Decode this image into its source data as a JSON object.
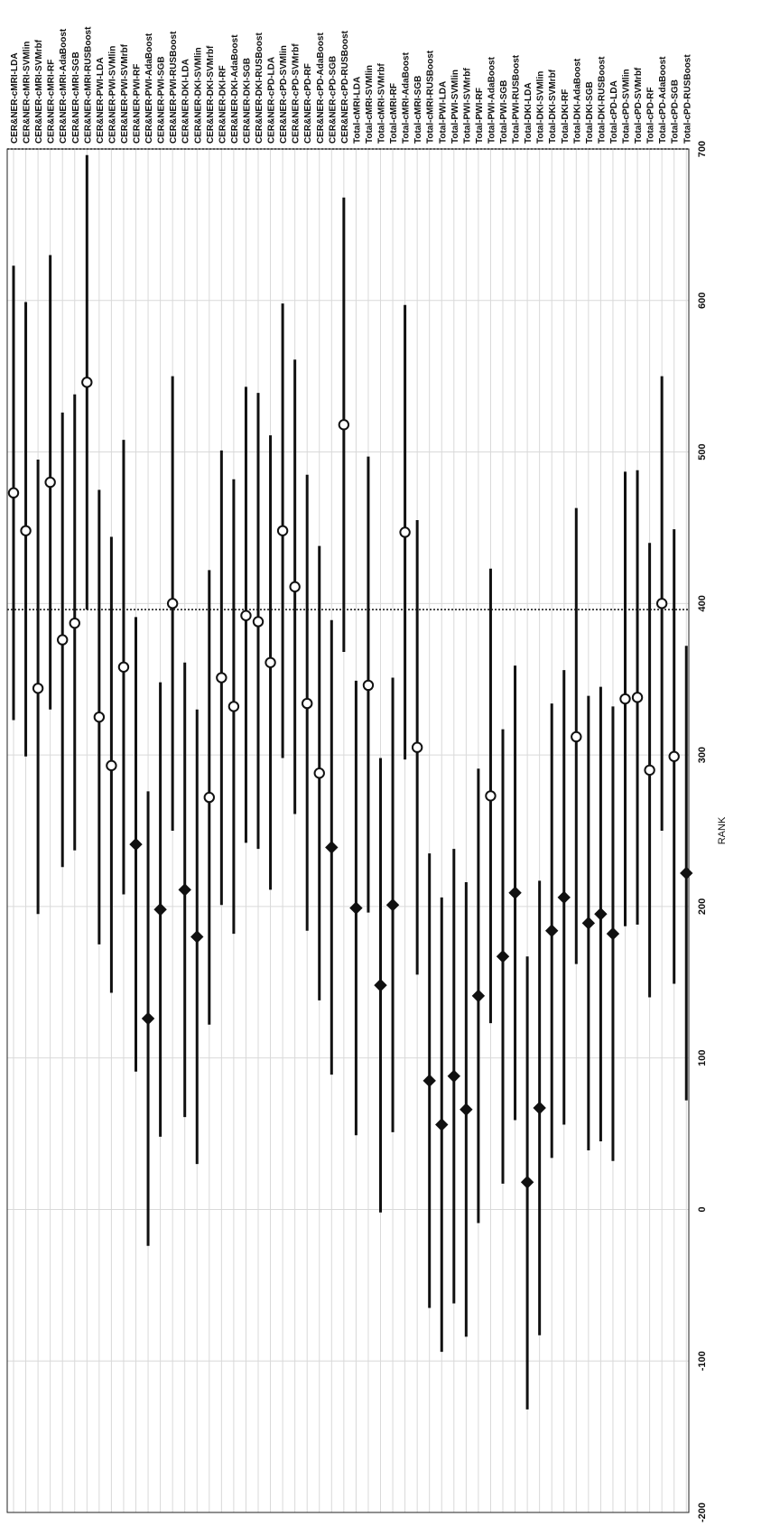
{
  "chart_data": {
    "type": "scatter",
    "orientation": "rotated-90-clockwise",
    "xlabel": "RANK",
    "xlim": [
      -200,
      700
    ],
    "xticks": [
      -200,
      -100,
      0,
      100,
      200,
      300,
      400,
      500,
      600,
      700
    ],
    "grid": true,
    "reference_lines": [
      396,
      700
    ],
    "marker_types": [
      "circle",
      "diamond"
    ],
    "categories": [
      "CER&NER-cMRI-LDA",
      "CER&NER-cMRI-SVMlin",
      "CER&NER-cMRI-SVMrbf",
      "CER&NER-cMRI-RF",
      "CER&NER-cMRI-AdaBoost",
      "CER&NER-cMRI-SGB",
      "CER&NER-cMRI-RUSBoost",
      "CER&NER-PWI-LDA",
      "CER&NER-PWI-SVMlin",
      "CER&NER-PWI-SVMrbf",
      "CER&NER-PWI-RF",
      "CER&NER-PWI-AdaBoost",
      "CER&NER-PWI-SGB",
      "CER&NER-PWI-RUSBoost",
      "CER&NER-DKI-LDA",
      "CER&NER-DKI-SVMlin",
      "CER&NER-DKI-SVMrbf",
      "CER&NER-DKI-RF",
      "CER&NER-DKI-AdaBoost",
      "CER&NER-DKI-SGB",
      "CER&NER-DKI-RUSBoost",
      "CER&NER-cPD-LDA",
      "CER&NER-cPD-SVMlin",
      "CER&NER-cPD-SVMrbf",
      "CER&NER-cPD-RF",
      "CER&NER-cPD-AdaBoost",
      "CER&NER-cPD-SGB",
      "CER&NER-cPD-RUSBoost",
      "Total-cMRI-LDA",
      "Total-cMRI-SVMlin",
      "Total-cMRI-SVMrbf",
      "Total-cMRI-RF",
      "Total-cMRI-AdaBoost",
      "Total-cMRI-SGB",
      "Total-cMRI-RUSBoost",
      "Total-PWI-LDA",
      "Total-PWI-SVMlin",
      "Total-PWI-SVMrbf",
      "Total-PWI-RF",
      "Total-PWI-AdaBoost",
      "Total-PWI-SGB",
      "Total-PWI-RUSBoost",
      "Total-DKI-LDA",
      "Total-DKI-SVMlin",
      "Total-DKI-SVMrbf",
      "Total-DKI-RF",
      "Total-DKI-AdaBoost",
      "Total-DKI-SGB",
      "Total-DKI-RUSBoost",
      "Total-cPD-LDA",
      "Total-cPD-SVMlin",
      "Total-cPD-SVMrbf",
      "Total-cPD-RF",
      "Total-cPD-AdaBoost",
      "Total-cPD-SGB",
      "Total-cPD-RUSBoost"
    ],
    "center": [
      473,
      448,
      344,
      480,
      376,
      387,
      546,
      325,
      293,
      358,
      241,
      126,
      198,
      400,
      211,
      180,
      272,
      351,
      332,
      392,
      388,
      361,
      448,
      411,
      334,
      288,
      239,
      518,
      199,
      346,
      148,
      201,
      447,
      305,
      85,
      56,
      88,
      66,
      141,
      273,
      167,
      209,
      18,
      67,
      184,
      206,
      312,
      189,
      195,
      182,
      337,
      338,
      290,
      400,
      299,
      222
    ],
    "lower": [
      323,
      299,
      195,
      330,
      226,
      237,
      396,
      175,
      143,
      208,
      91,
      -24,
      48,
      250,
      61,
      30,
      122,
      201,
      182,
      242,
      238,
      211,
      298,
      261,
      184,
      138,
      89,
      368,
      49,
      196,
      -2,
      51,
      297,
      155,
      -65,
      -94,
      -62,
      -84,
      -9,
      123,
      17,
      59,
      -132,
      -83,
      34,
      56,
      162,
      39,
      45,
      32,
      187,
      188,
      140,
      250,
      149,
      72
    ],
    "upper": [
      623,
      599,
      495,
      630,
      526,
      538,
      696,
      475,
      444,
      508,
      391,
      276,
      348,
      550,
      361,
      330,
      422,
      501,
      482,
      543,
      539,
      511,
      598,
      561,
      485,
      438,
      389,
      668,
      349,
      497,
      298,
      351,
      597,
      455,
      235,
      206,
      238,
      216,
      291,
      423,
      317,
      359,
      167,
      217,
      334,
      356,
      463,
      339,
      345,
      332,
      487,
      488,
      440,
      550,
      449,
      372
    ],
    "marker": [
      "circle",
      "circle",
      "circle",
      "circle",
      "circle",
      "circle",
      "circle",
      "circle",
      "circle",
      "circle",
      "diamond",
      "diamond",
      "diamond",
      "circle",
      "diamond",
      "diamond",
      "circle",
      "circle",
      "circle",
      "circle",
      "circle",
      "circle",
      "circle",
      "circle",
      "circle",
      "circle",
      "diamond",
      "circle",
      "diamond",
      "circle",
      "diamond",
      "diamond",
      "circle",
      "circle",
      "diamond",
      "diamond",
      "diamond",
      "diamond",
      "diamond",
      "circle",
      "diamond",
      "diamond",
      "diamond",
      "diamond",
      "diamond",
      "diamond",
      "circle",
      "diamond",
      "diamond",
      "diamond",
      "circle",
      "circle",
      "circle",
      "circle",
      "circle",
      "diamond"
    ]
  }
}
